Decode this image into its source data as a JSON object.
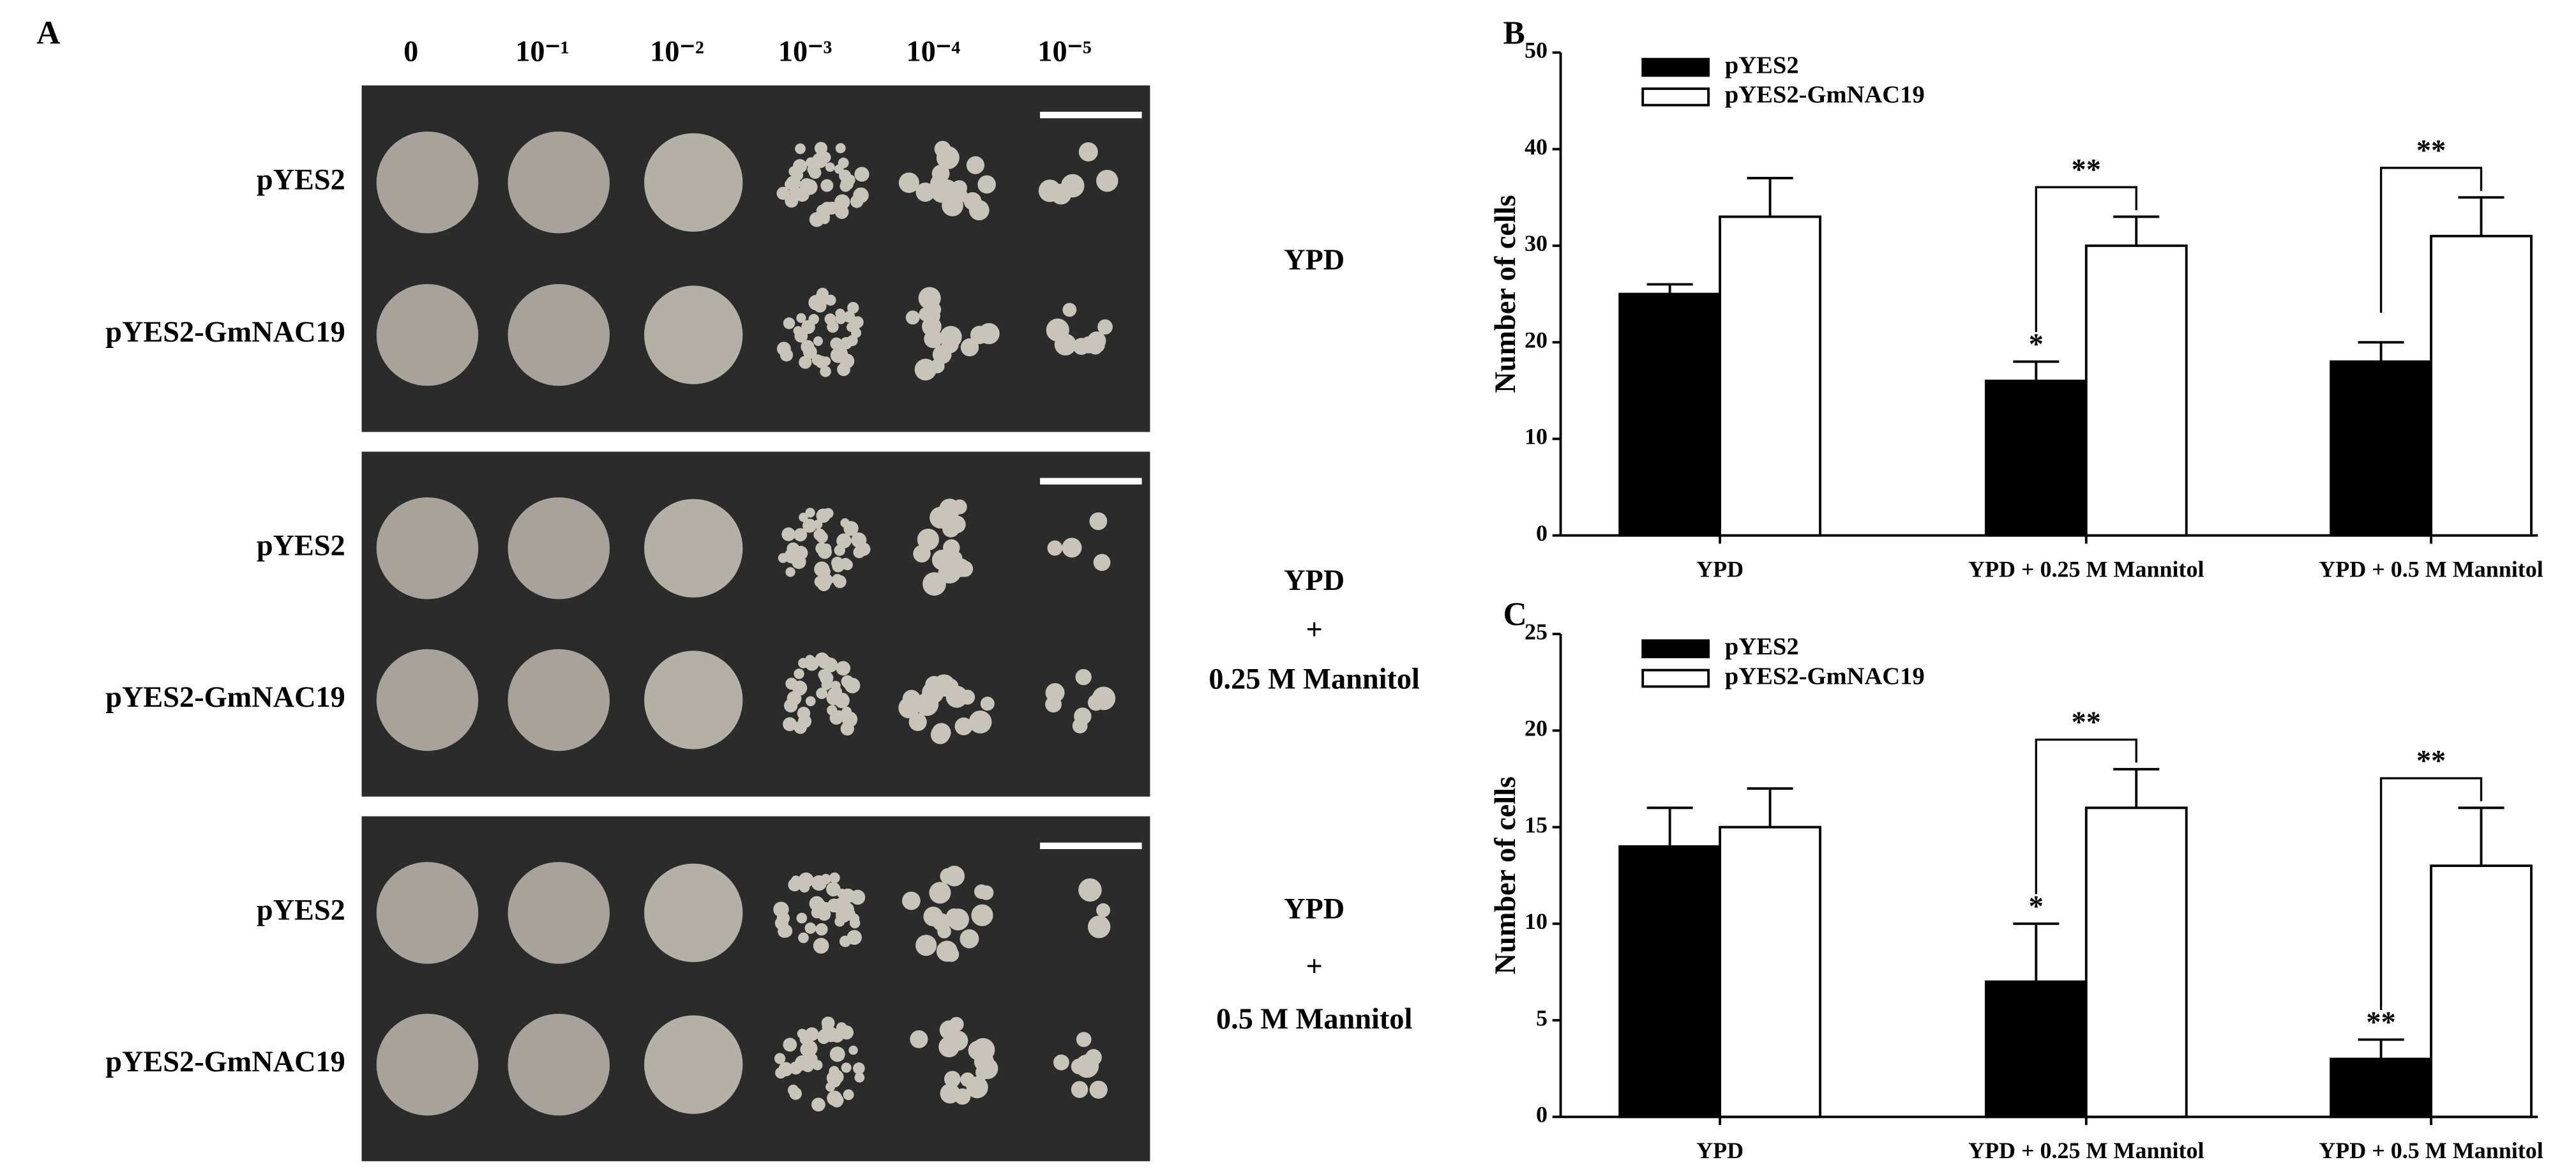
{
  "panel_a": {
    "label": "A",
    "dilutions": [
      "0",
      "10⁻¹",
      "10⁻²",
      "10⁻³",
      "10⁻⁴",
      "10⁻⁵"
    ],
    "strains": [
      "pYES2",
      "pYES2-GmNAC19"
    ],
    "conditions": [
      [
        "YPD"
      ],
      [
        "YPD",
        "+",
        "0.25 M Mannitol"
      ],
      [
        "YPD",
        "+",
        "0.5 M Mannitol"
      ]
    ]
  },
  "chart_data": [
    {
      "type": "bar",
      "panel": "B",
      "ylabel": "Number of cells",
      "categories": [
        "YPD",
        "YPD + 0.25 M Mannitol",
        "YPD + 0.5 M Mannitol"
      ],
      "series": [
        {
          "name": "pYES2",
          "color": "#000000",
          "values": [
            25,
            16,
            18
          ],
          "errors": [
            1,
            2,
            2
          ],
          "marks": [
            null,
            "*",
            null
          ]
        },
        {
          "name": "pYES2-GmNAC19",
          "color": "#ffffff",
          "values": [
            33,
            30,
            31
          ],
          "errors": [
            4,
            3,
            4
          ]
        }
      ],
      "brackets": [
        null,
        "**",
        "**"
      ],
      "ylim": [
        0,
        50
      ],
      "yticks": [
        0,
        10,
        20,
        30,
        40,
        50
      ]
    },
    {
      "type": "bar",
      "panel": "C",
      "ylabel": "Number of cells",
      "categories": [
        "YPD",
        "YPD + 0.25 M Mannitol",
        "YPD + 0.5 M Mannitol"
      ],
      "series": [
        {
          "name": "pYES2",
          "color": "#000000",
          "values": [
            14,
            7,
            3
          ],
          "errors": [
            2,
            3,
            1
          ],
          "marks": [
            null,
            "*",
            "**"
          ]
        },
        {
          "name": "pYES2-GmNAC19",
          "color": "#ffffff",
          "values": [
            15,
            16,
            13
          ],
          "errors": [
            2,
            2,
            3
          ]
        }
      ],
      "brackets": [
        null,
        "**",
        "**"
      ],
      "ylim": [
        0,
        25
      ],
      "yticks": [
        0,
        5,
        10,
        15,
        20,
        25
      ]
    }
  ]
}
